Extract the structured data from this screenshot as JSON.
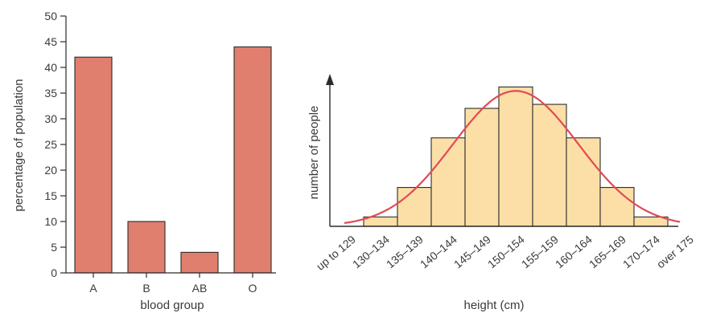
{
  "colors": {
    "bar_fill": "#E07F6D",
    "bar_stroke": "#2b2b2b",
    "hist_fill": "#FCDFA6",
    "hist_stroke": "#2b2b2b",
    "curve": "#E04A57",
    "axis": "#2b2b2b",
    "arrow": "#2b2b2b"
  },
  "chart_data": [
    {
      "type": "bar",
      "categories": [
        "A",
        "B",
        "AB",
        "O"
      ],
      "values": [
        42,
        10,
        4,
        44
      ],
      "xlabel": "blood group",
      "ylabel": "percentage of population",
      "ylim": [
        0,
        50
      ],
      "yticks": [
        0,
        5,
        10,
        15,
        20,
        25,
        30,
        35,
        40,
        45,
        50
      ],
      "grid": false
    },
    {
      "type": "histogram",
      "categories": [
        "up to 129",
        "130–134",
        "135–139",
        "140–144",
        "145–149",
        "150–154",
        "155–159",
        "160–164",
        "165–169",
        "170–174",
        "over 175"
      ],
      "values": [
        0,
        0.7,
        2.9,
        6.6,
        8.8,
        10.4,
        9.1,
        6.6,
        2.9,
        0.7,
        0
      ],
      "xlabel": "height (cm)",
      "ylabel": "number of people",
      "curve": "normal distribution overlay",
      "grid": false
    }
  ]
}
